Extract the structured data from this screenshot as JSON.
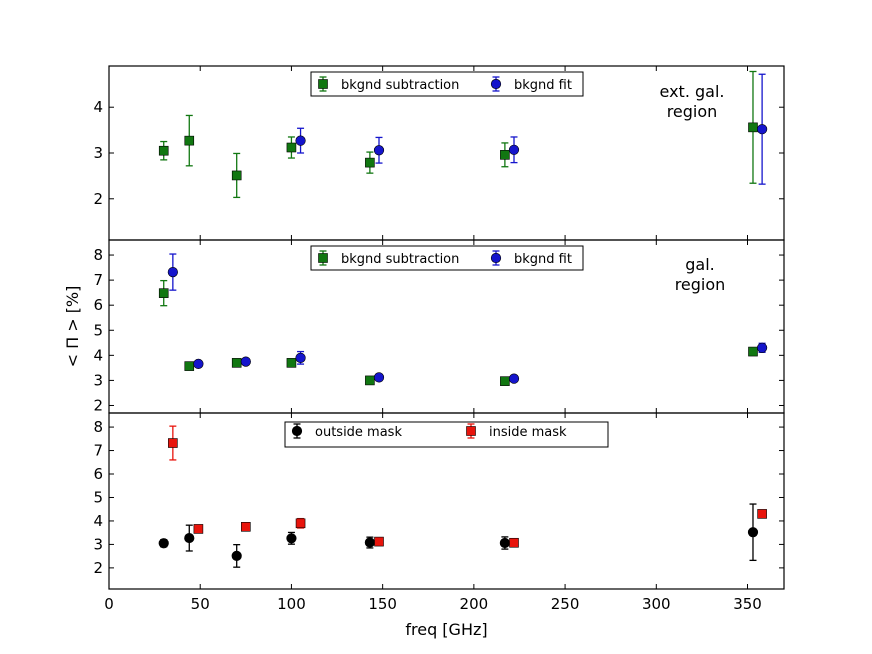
{
  "chart_data": [
    {
      "type": "scatter",
      "panel": "top",
      "annotation": [
        "ext. gal.",
        "region"
      ],
      "ylim": [
        1.1,
        4.9
      ],
      "yticks": [
        2,
        3,
        4
      ],
      "legend": {
        "placement": "upper-center",
        "entries": [
          "bkgnd subtraction",
          "bkgnd fit"
        ]
      },
      "series": [
        {
          "name": "bkgnd subtraction",
          "marker": "square",
          "color": "#117711",
          "points": [
            {
              "x": 30,
              "y": 3.05,
              "err": 0.2
            },
            {
              "x": 44,
              "y": 3.27,
              "err": 0.55
            },
            {
              "x": 70,
              "y": 2.51,
              "err": 0.48
            },
            {
              "x": 100,
              "y": 3.12,
              "err": 0.23
            },
            {
              "x": 143,
              "y": 2.79,
              "err": 0.23
            },
            {
              "x": 217,
              "y": 2.96,
              "err": 0.26
            },
            {
              "x": 353,
              "y": 3.56,
              "err": 1.22
            }
          ]
        },
        {
          "name": "bkgnd fit",
          "marker": "circle",
          "color": "#1515cc",
          "points": [
            {
              "x": 105,
              "y": 3.27,
              "err": 0.27
            },
            {
              "x": 148,
              "y": 3.06,
              "err": 0.28
            },
            {
              "x": 222,
              "y": 3.07,
              "err": 0.28
            },
            {
              "x": 358,
              "y": 3.52,
              "err": 1.2
            }
          ]
        }
      ]
    },
    {
      "type": "scatter",
      "panel": "middle",
      "annotation": [
        "gal.",
        "region"
      ],
      "ylabel": "< Π > [%]",
      "ylim": [
        1.7,
        8.6
      ],
      "yticks": [
        2,
        3,
        4,
        5,
        6,
        7,
        8
      ],
      "legend": {
        "placement": "upper-center",
        "entries": [
          "bkgnd subtraction",
          "bkgnd fit"
        ]
      },
      "series": [
        {
          "name": "bkgnd subtraction",
          "marker": "square",
          "color": "#117711",
          "points": [
            {
              "x": 30,
              "y": 6.48,
              "err": 0.5
            },
            {
              "x": 44,
              "y": 3.57,
              "err": 0.08
            },
            {
              "x": 70,
              "y": 3.7,
              "err": 0.08
            },
            {
              "x": 100,
              "y": 3.7,
              "err": 0.1
            },
            {
              "x": 143,
              "y": 3.0,
              "err": 0.06
            },
            {
              "x": 217,
              "y": 2.97,
              "err": 0.06
            },
            {
              "x": 353,
              "y": 4.15,
              "err": 0.08
            }
          ]
        },
        {
          "name": "bkgnd fit",
          "marker": "circle",
          "color": "#1515cc",
          "points": [
            {
              "x": 35,
              "y": 7.32,
              "err": 0.72
            },
            {
              "x": 49,
              "y": 3.66,
              "err": 0.08
            },
            {
              "x": 75,
              "y": 3.75,
              "err": 0.1
            },
            {
              "x": 105,
              "y": 3.9,
              "err": 0.25
            },
            {
              "x": 148,
              "y": 3.12,
              "err": 0.08
            },
            {
              "x": 222,
              "y": 3.07,
              "err": 0.08
            },
            {
              "x": 358,
              "y": 4.3,
              "err": 0.18
            }
          ]
        }
      ]
    },
    {
      "type": "scatter",
      "panel": "bottom",
      "xlabel": "freq [GHz]",
      "xlim": [
        0,
        370
      ],
      "xticks": [
        0,
        50,
        100,
        150,
        200,
        250,
        300,
        350
      ],
      "ylim": [
        1.1,
        8.6
      ],
      "yticks": [
        2,
        3,
        4,
        5,
        6,
        7,
        8
      ],
      "legend": {
        "placement": "upper-center",
        "entries": [
          "outside mask",
          "inside mask"
        ]
      },
      "series": [
        {
          "name": "outside mask",
          "marker": "circle",
          "color": "#000000",
          "points": [
            {
              "x": 30,
              "y": 3.05,
              "err": 0.15
            },
            {
              "x": 44,
              "y": 3.27,
              "err": 0.55
            },
            {
              "x": 70,
              "y": 2.51,
              "err": 0.48
            },
            {
              "x": 100,
              "y": 3.26,
              "err": 0.25
            },
            {
              "x": 143,
              "y": 3.08,
              "err": 0.23
            },
            {
              "x": 217,
              "y": 3.06,
              "err": 0.26
            },
            {
              "x": 353,
              "y": 3.52,
              "err": 1.2
            }
          ]
        },
        {
          "name": "inside mask",
          "marker": "square",
          "color": "#e8140c",
          "points": [
            {
              "x": 35,
              "y": 7.32,
              "err": 0.72
            },
            {
              "x": 49,
              "y": 3.66,
              "err": 0.08
            },
            {
              "x": 75,
              "y": 3.75,
              "err": 0.1
            },
            {
              "x": 105,
              "y": 3.9,
              "err": 0.2
            },
            {
              "x": 148,
              "y": 3.12,
              "err": 0.08
            },
            {
              "x": 222,
              "y": 3.07,
              "err": 0.06
            },
            {
              "x": 358,
              "y": 4.3,
              "err": 0.1
            }
          ]
        }
      ]
    }
  ]
}
